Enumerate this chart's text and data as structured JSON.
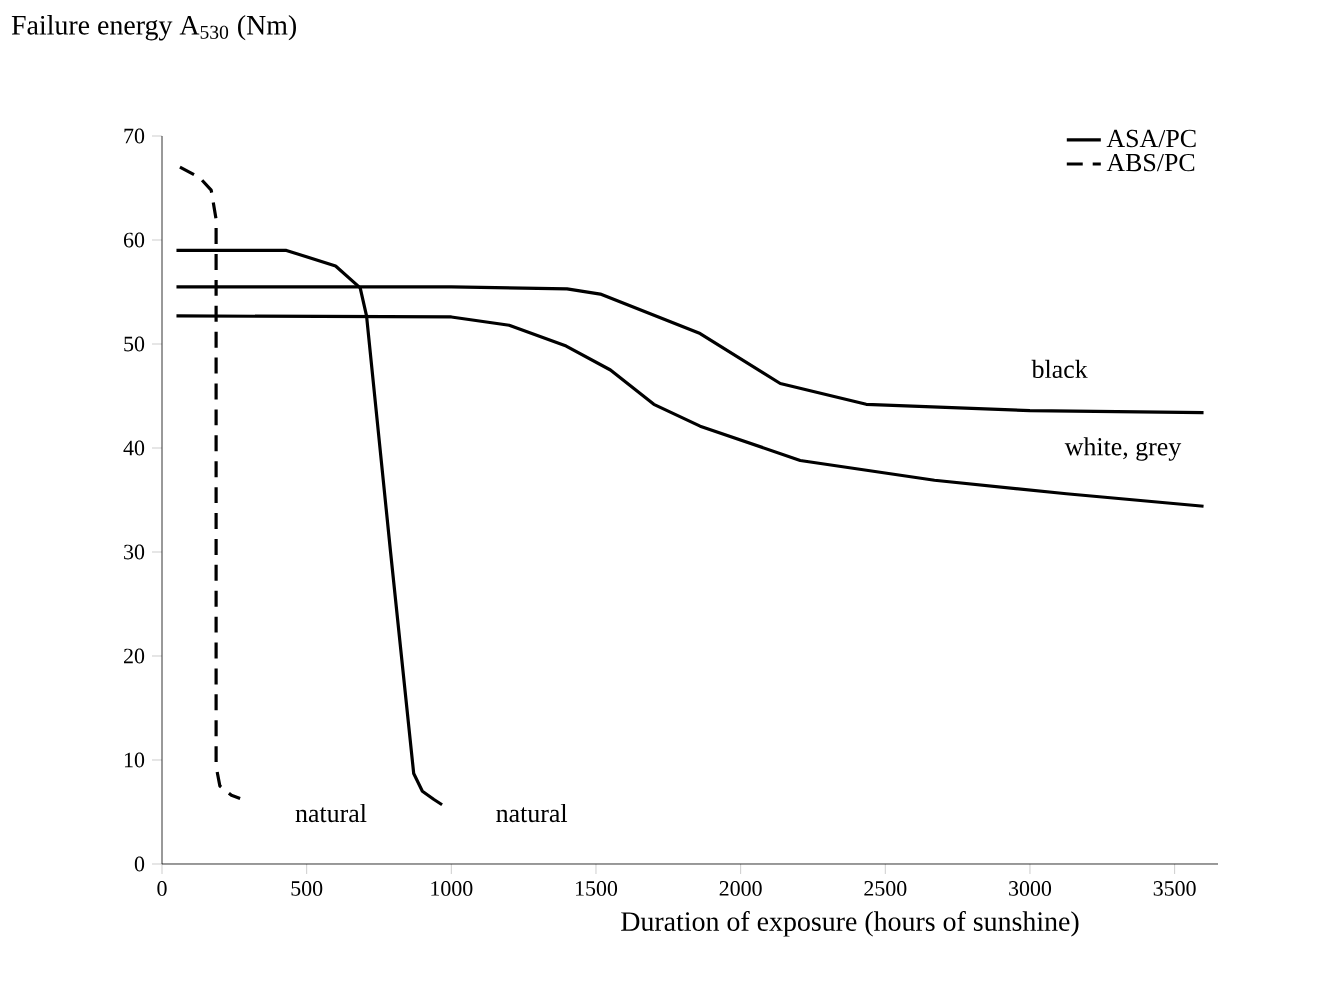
{
  "chart_data": {
    "type": "line",
    "ylabel": "Failure energy A$_{530}$ (Nm)",
    "xlabel": "Duration of exposure (hours of sunshine)",
    "xlim": [
      0,
      3650
    ],
    "ylim": [
      0,
      70
    ],
    "xticks": [
      0,
      500,
      1000,
      1500,
      2000,
      2500,
      3000,
      3500
    ],
    "yticks": [
      0,
      10,
      20,
      30,
      40,
      50,
      60,
      70
    ],
    "grid": false,
    "legend": "top right",
    "marker": "none",
    "line_style": "solid",
    "series": [
      {
        "name": "ASA/PC",
        "color": "#000000",
        "x": [
          50,
          430,
          600,
          685,
          707,
          790,
          870,
          900,
          940,
          968
        ],
        "values": [
          59,
          59,
          57.5,
          55.4,
          52.7,
          30,
          8.7,
          7,
          6.2,
          5.7
        ]
      },
      {
        "name": "ABS/PC",
        "color": "#000000",
        "line_style": "dashed",
        "x": [
          62,
          130,
          170,
          187,
          187,
          200,
          240,
          270
        ],
        "values": [
          67,
          66,
          64.8,
          62,
          9.4,
          7.5,
          6.6,
          6.3
        ]
      },
      {
        "color": "#000000",
        "x": [
          50,
          1000,
          1400,
          1515,
          1860,
          2137,
          2434,
          3000,
          3600
        ],
        "values": [
          55.5,
          55.5,
          55.3,
          54.8,
          51,
          46.2,
          44.2,
          43.6,
          43.4
        ]
      },
      {
        "color": "#000000",
        "x": [
          50,
          1000,
          1200,
          1397,
          1550,
          1700,
          1860,
          2206,
          2670,
          3126,
          3600
        ],
        "values": [
          52.7,
          52.6,
          51.8,
          49.8,
          47.5,
          44.2,
          42.1,
          38.8,
          36.9,
          35.6,
          34.4
        ]
      }
    ],
    "annotations": [
      "natural",
      "natural",
      "black",
      "white, grey"
    ]
  }
}
